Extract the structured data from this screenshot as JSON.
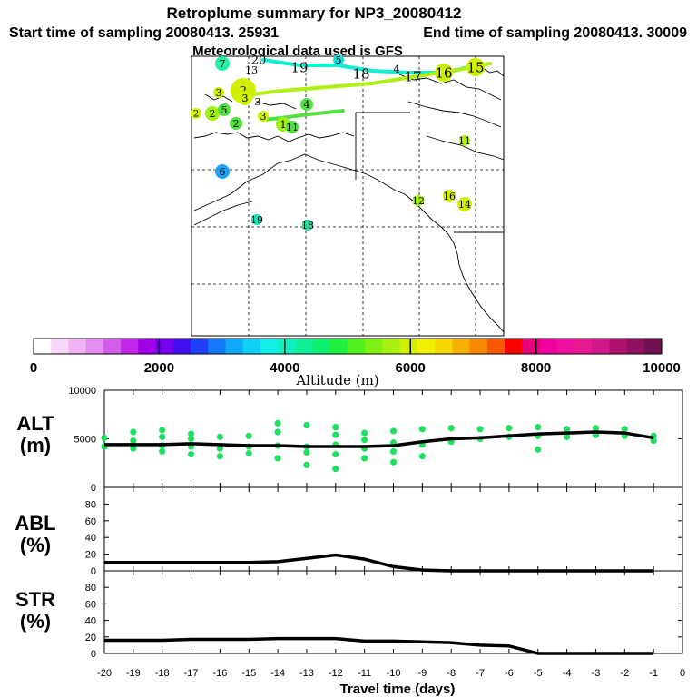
{
  "chart_data": {
    "title": "Retroplume summary for NP3_20080412",
    "start_label": "Start time of sampling 20080413. 25931",
    "end_label": "End time of sampling 20080413. 30009",
    "met_label": "Meteorological data used is GFS",
    "colorbar": {
      "label": "Altitude (m)",
      "min": 0,
      "max": 10000,
      "ticks": [
        "0",
        "2000",
        "4000",
        "6000",
        "8000",
        "10000"
      ],
      "colors": [
        "#ffffff",
        "#f6d8f8",
        "#eeb4f4",
        "#e48cf0",
        "#d45ceb",
        "#c026e8",
        "#a000e8",
        "#7800f0",
        "#4010f0",
        "#2040f8",
        "#1478f8",
        "#10a8f8",
        "#10d0f8",
        "#10f0e8",
        "#10f0c0",
        "#10f098",
        "#10f070",
        "#20f040",
        "#50f020",
        "#80f010",
        "#a8f010",
        "#d0f000",
        "#f0f000",
        "#f8d800",
        "#f8b000",
        "#f88800",
        "#f85800",
        "#f80000",
        "#e8007a",
        "#f000a0",
        "#f010a0",
        "#e81890",
        "#d01888",
        "#b01070",
        "#901060",
        "#701050"
      ]
    },
    "map": {
      "labels": [
        {
          "t": "7",
          "c": "#20f0a0",
          "s": 8,
          "f": 11
        },
        {
          "t": "20",
          "c": "#10f0d0",
          "s": 0,
          "f": 13
        },
        {
          "t": "13",
          "c": "#ffffff",
          "s": 0,
          "f": 11
        },
        {
          "t": "19",
          "c": "#ffffff",
          "s": 0,
          "f": 15
        },
        {
          "t": "5",
          "c": "#10e0e0",
          "s": 6,
          "f": 11
        },
        {
          "t": "18",
          "c": "#ffffff",
          "s": 0,
          "f": 15
        },
        {
          "t": "4",
          "c": "#ffffff",
          "s": 0,
          "f": 11
        },
        {
          "t": "17",
          "c": "#ffffff",
          "s": 0,
          "f": 15
        },
        {
          "t": "16",
          "c": "#d0f000",
          "s": 10,
          "f": 15
        },
        {
          "t": "15",
          "c": "#d0f000",
          "s": 10,
          "f": 15
        },
        {
          "t": "3",
          "c": "#d0f000",
          "s": 6,
          "f": 11
        },
        {
          "t": "2",
          "c": "#d0f000",
          "s": 14,
          "f": 13
        },
        {
          "t": "3",
          "c": "#d0f000",
          "s": 8,
          "f": 11
        },
        {
          "t": "3",
          "c": "#ffffff",
          "s": 0,
          "f": 11
        },
        {
          "t": "4",
          "c": "#50e040",
          "s": 7,
          "f": 11
        },
        {
          "t": "2",
          "c": "#d0f000",
          "s": 6,
          "f": 10
        },
        {
          "t": "2",
          "c": "#a0f010",
          "s": 8,
          "f": 11
        },
        {
          "t": "5",
          "c": "#50e040",
          "s": 7,
          "f": 11
        },
        {
          "t": "3",
          "c": "#d0f000",
          "s": 6,
          "f": 11
        },
        {
          "t": "1",
          "c": "#a0f010",
          "s": 8,
          "f": 11
        },
        {
          "t": "11",
          "c": "#50e040",
          "s": 7,
          "f": 11
        },
        {
          "t": "2",
          "c": "#50e040",
          "s": 7,
          "f": 11
        },
        {
          "t": "11",
          "c": "#b0f010",
          "s": 6,
          "f": 11
        },
        {
          "t": "6",
          "c": "#20a0f0",
          "s": 8,
          "f": 11
        },
        {
          "t": "12",
          "c": "#a0f010",
          "s": 6,
          "f": 11
        },
        {
          "t": "16",
          "c": "#d0f000",
          "s": 7,
          "f": 11
        },
        {
          "t": "14",
          "c": "#d0f000",
          "s": 8,
          "f": 11
        },
        {
          "t": "19",
          "c": "#20e0c0",
          "s": 6,
          "f": 11
        },
        {
          "t": "18",
          "c": "#20e0a0",
          "s": 6,
          "f": 11
        }
      ]
    },
    "alt_panel": {
      "ylabel_top": "ALT",
      "ylabel_bottom": "(m)",
      "ylim": [
        0,
        10000
      ],
      "yticks": [
        "10000",
        "5000",
        "0"
      ],
      "median": {
        "x": [
          -20,
          -19,
          -18,
          -17,
          -16,
          -15,
          -14,
          -13,
          -12,
          -11,
          -10,
          -9,
          -8,
          -7,
          -6,
          -5,
          -4,
          -3,
          -2,
          -1
        ],
        "y": [
          4400,
          4400,
          4400,
          4500,
          4400,
          4300,
          4300,
          4200,
          4200,
          4200,
          4300,
          4700,
          5000,
          5100,
          5300,
          5500,
          5600,
          5700,
          5600,
          5100
        ]
      },
      "points_x": [
        -20,
        -20,
        -19,
        -19,
        -19,
        -18,
        -18,
        -18,
        -18,
        -17,
        -17,
        -17,
        -17,
        -16,
        -16,
        -16,
        -15,
        -15,
        -15,
        -14,
        -14,
        -14,
        -14,
        -13,
        -13,
        -13,
        -13,
        -12,
        -12,
        -12,
        -12,
        -12,
        -11,
        -11,
        -11,
        -11,
        -10,
        -10,
        -10,
        -10,
        -9,
        -9,
        -9,
        -8,
        -8,
        -7,
        -7,
        -6,
        -6,
        -5,
        -5,
        -5,
        -4,
        -4,
        -3,
        -3,
        -2,
        -2,
        -1,
        -1
      ],
      "points_y": [
        4200,
        5100,
        4000,
        4800,
        5700,
        3700,
        4300,
        5200,
        5900,
        3400,
        4200,
        5000,
        5500,
        3200,
        4000,
        5200,
        3500,
        4200,
        5300,
        3000,
        4300,
        5700,
        6600,
        2300,
        3600,
        4200,
        6400,
        1900,
        3400,
        4400,
        5400,
        6200,
        3000,
        4000,
        4900,
        5600,
        2600,
        3700,
        4600,
        5800,
        3200,
        4400,
        6000,
        4700,
        6100,
        5000,
        6000,
        5200,
        6100,
        3900,
        5300,
        6200,
        5200,
        6000,
        5400,
        6100,
        5300,
        6000,
        4800,
        5300
      ]
    },
    "abl_panel": {
      "ylabel_top": "ABL",
      "ylabel_bottom": "(%)",
      "ylim": [
        0,
        100
      ],
      "yticks": [
        "80",
        "60",
        "40",
        "20",
        "0"
      ],
      "x": [
        -20,
        -19,
        -18,
        -17,
        -16,
        -15,
        -14,
        -13,
        -12,
        -11,
        -10,
        -9,
        -8,
        -7,
        -6,
        -5,
        -4,
        -3,
        -2,
        -1
      ],
      "y": [
        10,
        10,
        10,
        10,
        10,
        10,
        11,
        15,
        19,
        14,
        5,
        1,
        0,
        0,
        0,
        0,
        0,
        0,
        0,
        0
      ]
    },
    "str_panel": {
      "ylabel_top": "STR",
      "ylabel_bottom": "(%)",
      "ylim": [
        0,
        100
      ],
      "yticks": [
        "80",
        "60",
        "40",
        "20",
        "0"
      ],
      "x": [
        -20,
        -19,
        -18,
        -17,
        -16,
        -15,
        -14,
        -13,
        -12,
        -11,
        -10,
        -9,
        -8,
        -7,
        -6,
        -5,
        -4,
        -3,
        -2,
        -1
      ],
      "y": [
        16,
        16,
        16,
        17,
        17,
        17,
        18,
        18,
        18,
        15,
        15,
        14,
        13,
        10,
        9,
        0,
        0,
        0,
        0,
        0
      ]
    },
    "x_axis": {
      "label": "Travel time (days)",
      "xlim": [
        -20,
        0
      ],
      "ticks": [
        "-20",
        "-19",
        "-18",
        "-17",
        "-16",
        "-15",
        "-14",
        "-13",
        "-12",
        "-11",
        "-10",
        "-9",
        "-8",
        "-7",
        "-6",
        "-5",
        "-4",
        "-3",
        "-2",
        "-1",
        "0"
      ]
    },
    "point_color": "#20e060",
    "line_color": "#000000",
    "map_line_colors": [
      "#10f0d0",
      "#b0f010",
      "#50e040"
    ]
  }
}
